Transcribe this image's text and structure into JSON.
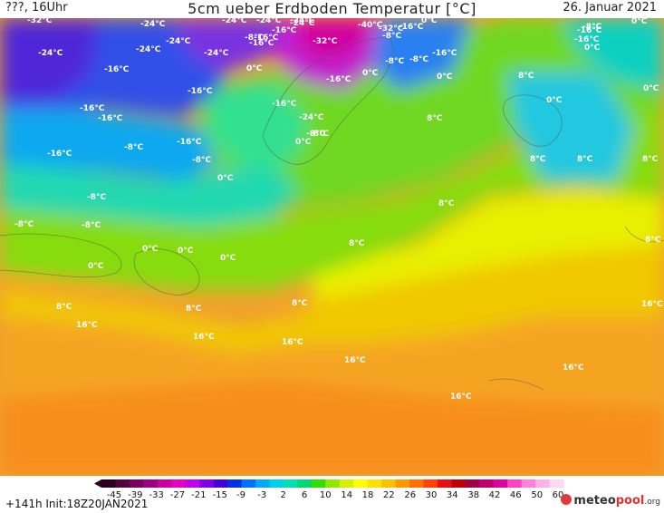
{
  "header": {
    "left_label": "???, 16Uhr",
    "title": "5cm ueber Erdboden Temperatur [°C]",
    "date": "26. Januar 2021"
  },
  "legend": {
    "tick_labels": [
      "-45",
      "-39",
      "-33",
      "-27",
      "-21",
      "-15",
      "-9",
      "-3",
      "2",
      "6",
      "10",
      "14",
      "18",
      "22",
      "26",
      "30",
      "34",
      "38",
      "42",
      "46",
      "50",
      "60"
    ],
    "colors": [
      "#2a0020",
      "#55003f",
      "#7a005f",
      "#a0007f",
      "#c8009f",
      "#e800c0",
      "#c000e8",
      "#8000e8",
      "#4000e0",
      "#0030e8",
      "#0070ff",
      "#00a8ff",
      "#00d0e8",
      "#00e0b0",
      "#00d870",
      "#30e000",
      "#90e800",
      "#d8f000",
      "#ffff00",
      "#ffe000",
      "#ffc000",
      "#ff9800",
      "#ff7000",
      "#ff4000",
      "#e81010",
      "#c00000",
      "#a00040",
      "#c00070",
      "#e000a0",
      "#ff40c0",
      "#ff80d8",
      "#ffb0e8",
      "#ffd8f4"
    ]
  },
  "map_labels": [
    "-32°C",
    "-24°C",
    "-24°C",
    "-24°C",
    "-24°C",
    "-24°C",
    "-40°C",
    "0°C",
    "0°C",
    "-24°C",
    "-24°C",
    "-24°C",
    "-16°C",
    "-32°C",
    "-16°C",
    "-16°C",
    "-16°C",
    "-8°C",
    "-16°C",
    "-8°C",
    "-8°C",
    "-32°C",
    "-24°C",
    "-8°C",
    "-16°C",
    "0°C",
    "0°C",
    "0°C",
    "-8°C",
    "-16°C",
    "-16°C",
    "-16°C",
    "-16°C",
    "-8°C",
    "0°C",
    "8°C",
    "0°C",
    "-16°C",
    "-16°C",
    "-24°C",
    "8°C",
    "0°C",
    "-16°C",
    "-16°C",
    "-8°C",
    "0°C",
    "-16°C",
    "-8°C",
    "-8°C",
    "8°C",
    "8°C",
    "8°C",
    "0°C",
    "-8°C",
    "-8°C",
    "8°C",
    "-8°C",
    "8°C",
    "0°C",
    "0°C",
    "0°C",
    "0°C",
    "8°C",
    "8°C",
    "16°C",
    "8°C",
    "8°C",
    "16°C",
    "16°C",
    "16°C",
    "16°C",
    "16°C",
    "16°C"
  ],
  "footer": {
    "run_info": "+141h  Init:18Z20JAN2021",
    "brand_a": "meteo",
    "brand_b": "pool",
    "brand_c": ".org"
  }
}
